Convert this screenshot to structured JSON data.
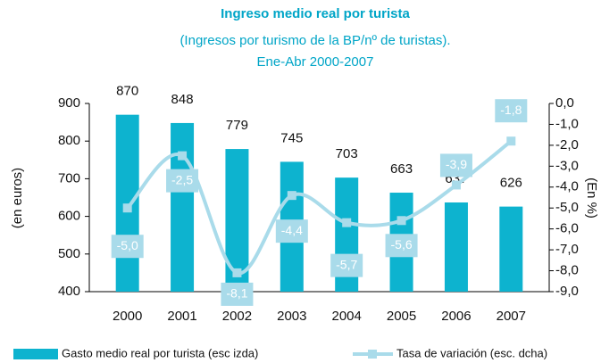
{
  "chart_data": {
    "type": "bar",
    "title": "Ingreso medio real por turista",
    "subtitle": [
      "(Ingresos por turismo de la BP/nº de turistas).",
      "Ene-Abr 2000-2007"
    ],
    "ylabel": "(en euros)",
    "y2label": "(En %)",
    "categories": [
      "2000",
      "2001",
      "2002",
      "2003",
      "2004",
      "2005",
      "2006",
      "2007"
    ],
    "series": [
      {
        "name": "Gasto medio real por turista (esc izda)",
        "type": "bar",
        "color": "#0db3cf",
        "values": [
          870,
          848,
          779,
          745,
          703,
          663,
          637,
          626
        ]
      },
      {
        "name": "Tasa de variación  (esc. dcha)",
        "type": "line",
        "axis": "y2",
        "color": "#a9dbea",
        "values": [
          -5.0,
          -2.5,
          -8.1,
          -4.4,
          -5.7,
          -5.6,
          -3.9,
          -1.8
        ],
        "value_labels": [
          "-5,0",
          "-2,5",
          "-8,1",
          "-4,4",
          "-5,7",
          "-5,6",
          "-3,9",
          "-1,8"
        ]
      }
    ],
    "ylim": [
      400,
      900
    ],
    "yticks": [
      400,
      500,
      600,
      700,
      800,
      900
    ],
    "y2lim": [
      -9,
      0
    ],
    "y2ticks": [
      {
        "value": 0,
        "label": "0,0"
      },
      {
        "value": -1,
        "label": "-1,0"
      },
      {
        "value": -2,
        "label": "-2,0"
      },
      {
        "value": -3,
        "label": "-3,0"
      },
      {
        "value": -4,
        "label": "-4,0"
      },
      {
        "value": -5,
        "label": "-5,0"
      },
      {
        "value": -6,
        "label": "-6,0"
      },
      {
        "value": -7,
        "label": "-7,0"
      },
      {
        "value": -8,
        "label": "-8,0"
      },
      {
        "value": -9,
        "label": "-9,0"
      }
    ],
    "legend": "bottom"
  }
}
